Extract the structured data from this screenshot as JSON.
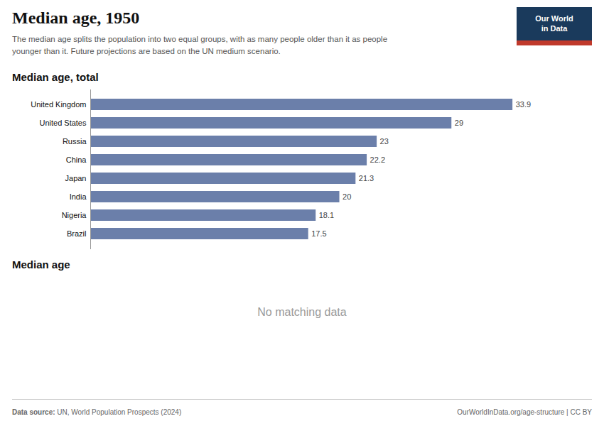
{
  "chart_data": {
    "type": "bar",
    "orientation": "horizontal",
    "title": "Median age, 1950",
    "subtitle": "The median age splits the population into two equal groups, with as many people older than it as people\nyounger than it. Future projections are based on the UN medium scenario.",
    "annotations": [
      "Our World\nin Data",
      "Median age, total",
      "Median age",
      "No matching data",
      "Data source:",
      " UN, World Population Prospects (2024)",
      "OurWorldInData.org/age-structure | CC BY"
    ],
    "categories": [
      "United Kingdom",
      "United States",
      "Russia",
      "China",
      "Japan",
      "India",
      "Nigeria",
      "Brazil"
    ],
    "values": [
      33.9,
      29,
      23,
      22.2,
      21.3,
      20,
      18.1,
      17.5
    ],
    "color": "#6b7faa",
    "xlim": [
      0,
      38
    ],
    "data_labels": true,
    "tick_labels": "y",
    "grid": false
  }
}
